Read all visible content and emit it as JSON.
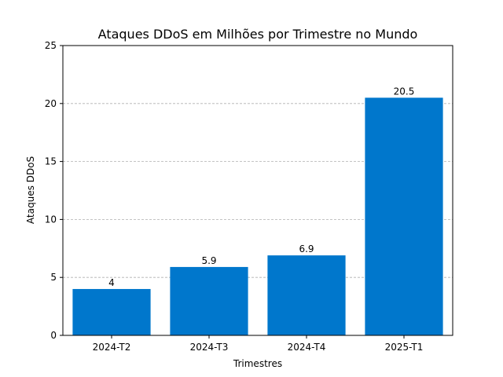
{
  "chart_data": {
    "type": "bar",
    "title": "Ataques DDoS em Milhões por Trimestre no Mundo",
    "xlabel": "Trimestres",
    "ylabel": "Ataques DDoS",
    "categories": [
      "2024-T2",
      "2024-T3",
      "2024-T4",
      "2025-T1"
    ],
    "values": [
      4,
      5.9,
      6.9,
      20.5
    ],
    "value_labels": [
      "4",
      "5.9",
      "6.9",
      "20.5"
    ],
    "ylim": [
      0,
      25
    ],
    "yticks": [
      0,
      5,
      10,
      15,
      20,
      25
    ],
    "grid": "y-dashed",
    "bar_color": "#0077cc"
  }
}
